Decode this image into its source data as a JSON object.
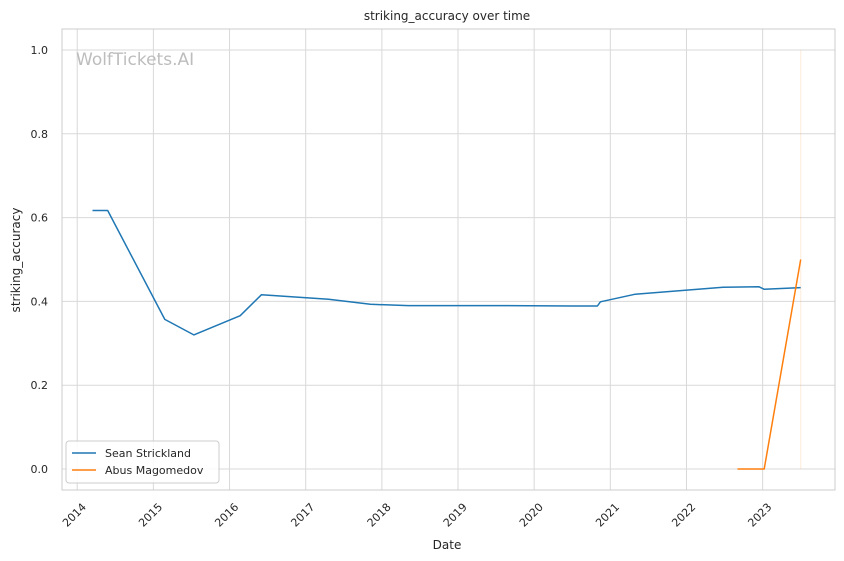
{
  "chart_data": {
    "type": "line",
    "title": "striking_accuracy over time",
    "xlabel": "Date",
    "ylabel": "striking_accuracy",
    "watermark": "WolfTickets.AI",
    "xlim": [
      2013.8,
      2023.95
    ],
    "ylim": [
      -0.05,
      1.05
    ],
    "x_ticks": [
      2014,
      2015,
      2016,
      2017,
      2018,
      2019,
      2020,
      2021,
      2022,
      2023
    ],
    "x_tick_labels": [
      "2014",
      "2015",
      "2016",
      "2017",
      "2018",
      "2019",
      "2020",
      "2021",
      "2022",
      "2023"
    ],
    "y_ticks": [
      0.0,
      0.2,
      0.4,
      0.6,
      0.8,
      1.0
    ],
    "y_tick_labels": [
      "0.0",
      "0.2",
      "0.4",
      "0.6",
      "0.8",
      "1.0"
    ],
    "grid": true,
    "legend_position": "lower-left",
    "series": [
      {
        "name": "Sean Strickland",
        "color": "#1f77b4",
        "x": [
          2014.2,
          2014.4,
          2015.15,
          2015.53,
          2016.14,
          2016.42,
          2017.3,
          2017.85,
          2018.35,
          2019.5,
          2020.5,
          2020.83,
          2020.87,
          2021.32,
          2022.48,
          2022.95,
          2023.02,
          2023.5
        ],
        "y": [
          0.617,
          0.617,
          0.357,
          0.32,
          0.366,
          0.416,
          0.405,
          0.393,
          0.39,
          0.39,
          0.389,
          0.389,
          0.399,
          0.417,
          0.434,
          0.435,
          0.429,
          0.433
        ]
      },
      {
        "name": "Abus Magomedov",
        "color": "#ff7f0e",
        "x": [
          2022.67,
          2023.02,
          2023.5
        ],
        "y": [
          0.0,
          0.0,
          0.5
        ]
      }
    ]
  }
}
